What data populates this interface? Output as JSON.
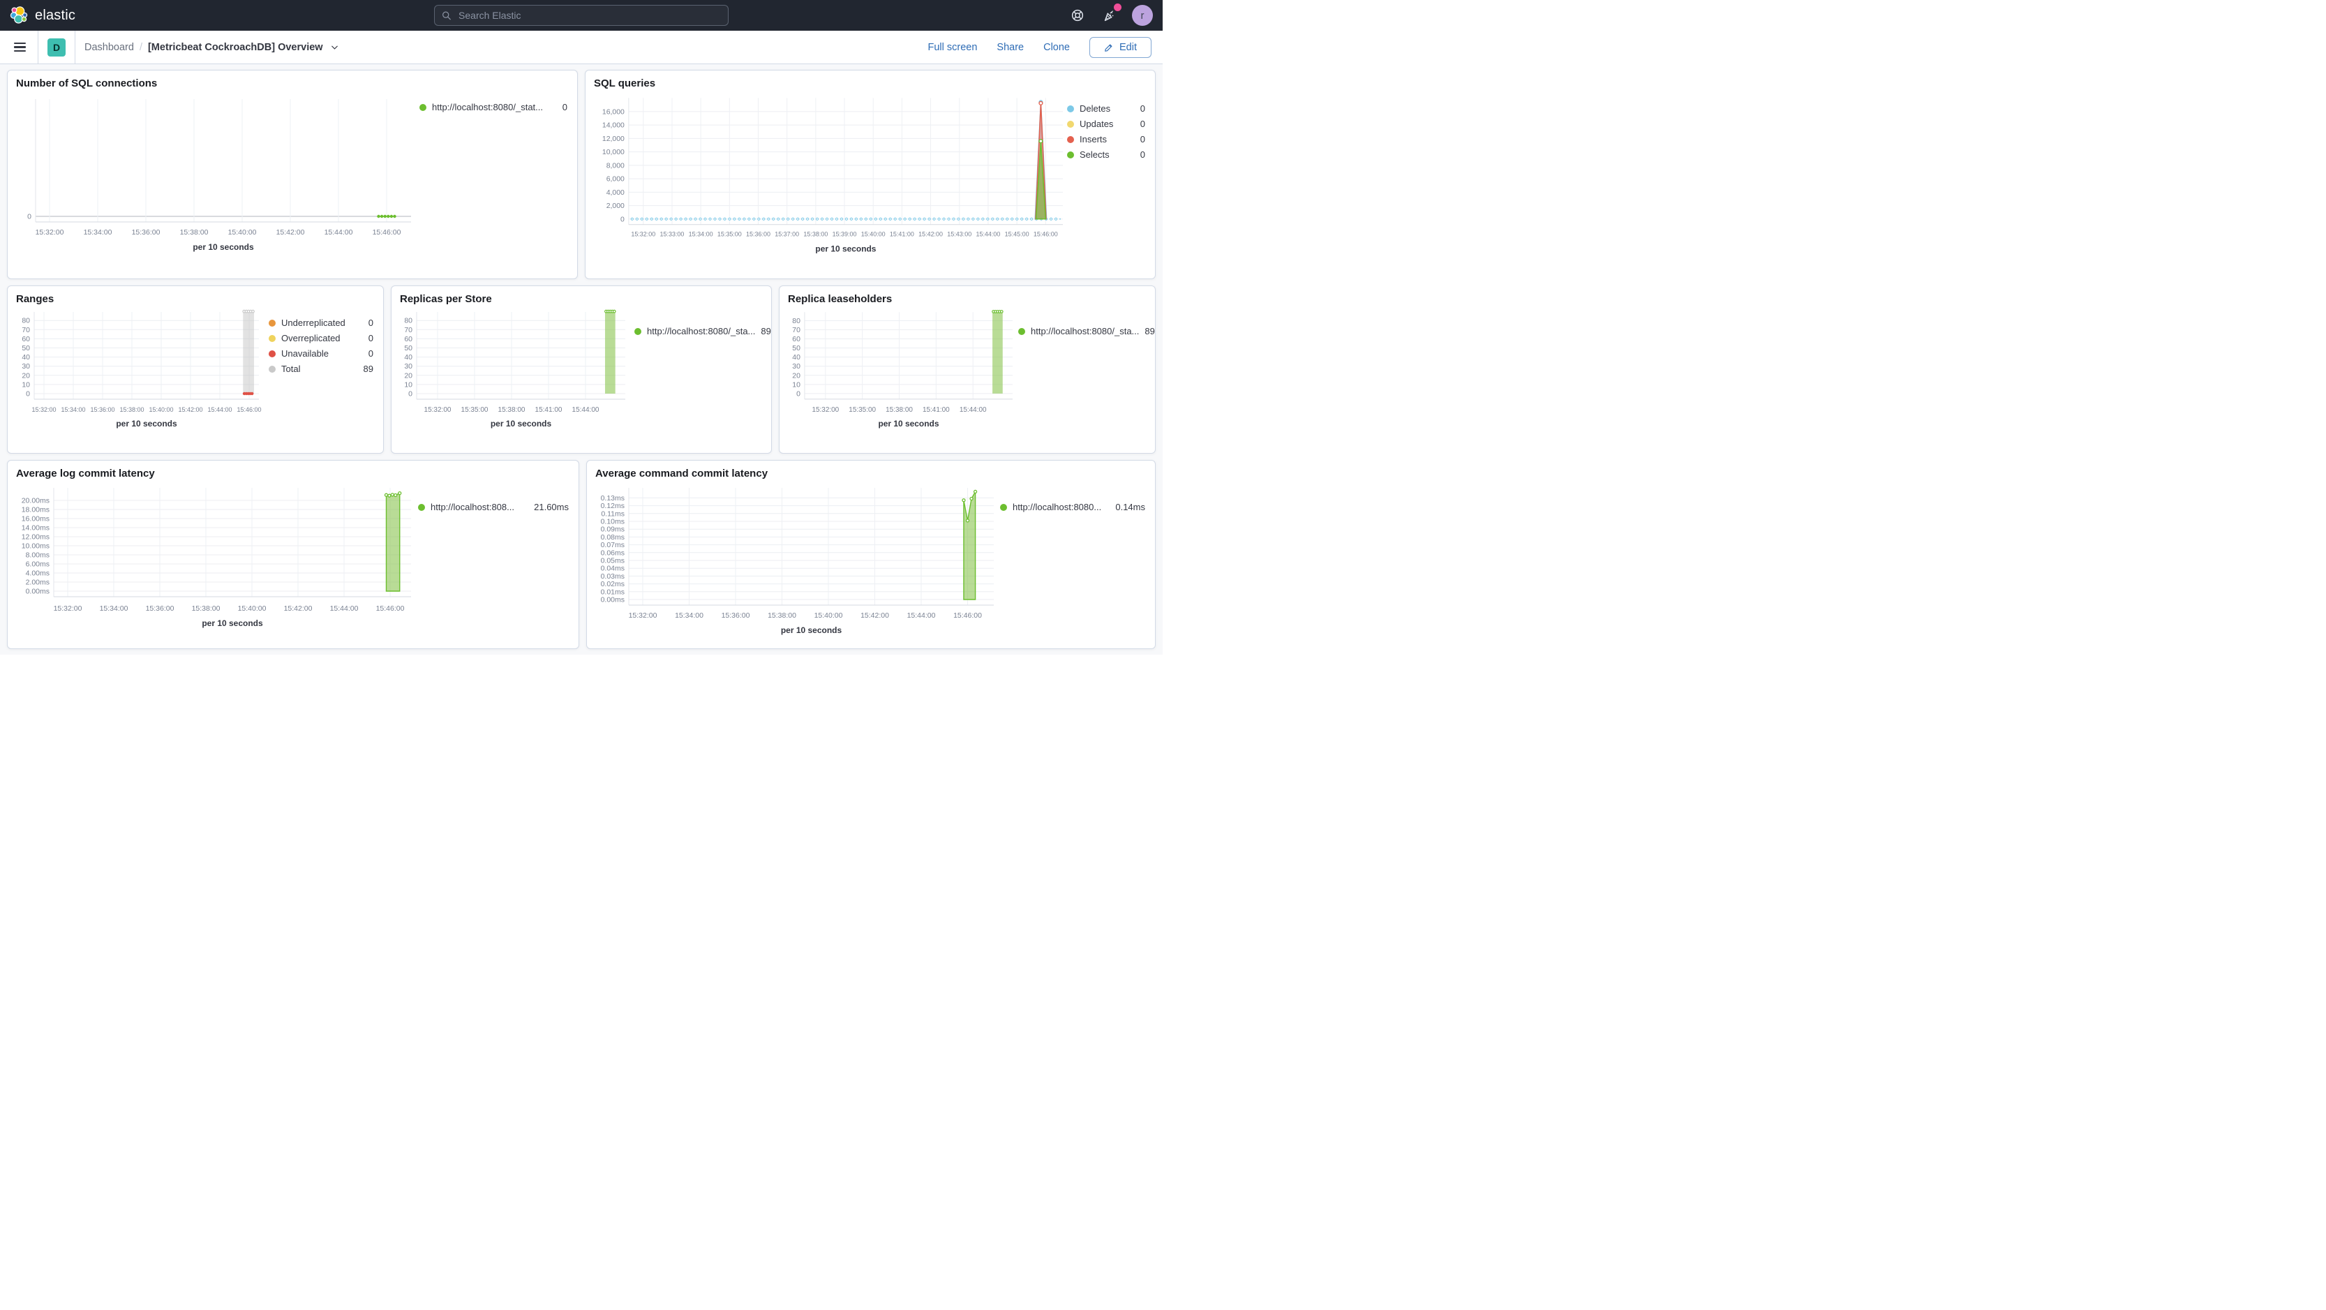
{
  "header": {
    "brand": "elastic",
    "search_placeholder": "Search Elastic",
    "avatar_initial": "r",
    "colors": {
      "bar_bg": "#212630",
      "notification_badge": "#F04E98",
      "avatar_bg": "#BCA3DE"
    }
  },
  "nav": {
    "app_badge": "D",
    "app_badge_color": "#3EBEB0",
    "breadcrumb": [
      "Dashboard",
      "[Metricbeat CockroachDB] Overview"
    ],
    "actions": [
      "Full screen",
      "Share",
      "Clone"
    ],
    "edit_label": "Edit",
    "link_color": "#2E6CB5"
  },
  "chart_data": [
    {
      "id": "sql-connections",
      "type": "line",
      "title": "Number of SQL connections",
      "x_label": "per 10 seconds",
      "x_ticks": [
        "15:32:00",
        "15:34:00",
        "15:36:00",
        "15:38:00",
        "15:40:00",
        "15:42:00",
        "15:44:00",
        "15:46:00"
      ],
      "y_tick_labels": [
        "0"
      ],
      "y_tick_values": [
        0
      ],
      "series": [
        {
          "name": "http://localhost:8080/_stat...",
          "legend_value": "0",
          "color": "#6CBE2F",
          "type": "points",
          "values": [
            [
              "15:45:40",
              0
            ],
            [
              "15:45:48",
              0
            ],
            [
              "15:45:56",
              0
            ],
            [
              "15:46:04",
              0
            ],
            [
              "15:46:12",
              0
            ],
            [
              "15:46:20",
              0
            ]
          ]
        }
      ]
    },
    {
      "id": "sql-queries",
      "type": "area",
      "title": "SQL queries",
      "x_label": "per 10 seconds",
      "x_ticks": [
        "15:32:00",
        "15:33:00",
        "15:34:00",
        "15:35:00",
        "15:36:00",
        "15:37:00",
        "15:38:00",
        "15:39:00",
        "15:40:00",
        "15:41:00",
        "15:42:00",
        "15:43:00",
        "15:44:00",
        "15:45:00",
        "15:46:00"
      ],
      "y_tick_labels": [
        "16,000",
        "14,000",
        "12,000",
        "10,000",
        "8,000",
        "6,000",
        "4,000",
        "2,000",
        "0"
      ],
      "y_tick_values": [
        16000,
        14000,
        12000,
        10000,
        8000,
        6000,
        4000,
        2000,
        0
      ],
      "series": [
        {
          "name": "Deletes",
          "legend_value": "0",
          "color": "#7DC9E7",
          "fill": "rgba(125,201,231,0.4)",
          "baseline": 0,
          "spike": {
            "time": "15:45:50",
            "peak": 17400,
            "base": [
              "15:45:38",
              "15:46:02"
            ]
          }
        },
        {
          "name": "Updates",
          "legend_value": "0",
          "color": "#F1D86F"
        },
        {
          "name": "Inserts",
          "legend_value": "0",
          "color": "#E4604E",
          "fill": "rgba(228,96,78,0.5)",
          "spike": {
            "time": "15:45:50",
            "peak": 17250,
            "base": [
              "15:45:39",
              "15:46:01"
            ]
          }
        },
        {
          "name": "Selects",
          "legend_value": "0",
          "color": "#6CBE2F",
          "fill": "rgba(108,190,47,0.55)",
          "spike": {
            "time": "15:45:50",
            "peak": 11600,
            "base": [
              "15:45:40",
              "15:46:00"
            ]
          }
        }
      ]
    },
    {
      "id": "ranges",
      "type": "bar",
      "title": "Ranges",
      "x_label": "per 10 seconds",
      "x_ticks": [
        "15:32:00",
        "15:34:00",
        "15:36:00",
        "15:38:00",
        "15:40:00",
        "15:42:00",
        "15:44:00",
        "15:46:00"
      ],
      "y_tick_labels": [
        "80",
        "70",
        "60",
        "50",
        "40",
        "30",
        "20",
        "10",
        "0"
      ],
      "y_tick_values": [
        80,
        70,
        60,
        50,
        40,
        30,
        20,
        10,
        0
      ],
      "series": [
        {
          "name": "Underreplicated",
          "legend_value": "0",
          "color": "#E8963C"
        },
        {
          "name": "Overreplicated",
          "legend_value": "0",
          "color": "#EFD35D"
        },
        {
          "name": "Unavailable",
          "legend_value": "0",
          "color": "#DF5146",
          "type": "points",
          "values": [
            [
              "15:45:40",
              0
            ],
            [
              "15:45:48",
              0
            ],
            [
              "15:45:56",
              0
            ],
            [
              "15:46:04",
              0
            ],
            [
              "15:46:12",
              0
            ]
          ]
        },
        {
          "name": "Total",
          "legend_value": "89",
          "color": "#C9C9C9",
          "type": "bar",
          "fill": "rgba(190,190,190,0.45)",
          "bar": {
            "from": "15:45:35",
            "to": "15:46:20",
            "height": 89,
            "top_markers": 5
          }
        }
      ]
    },
    {
      "id": "replicas-per-store",
      "type": "bar",
      "title": "Replicas per Store",
      "x_label": "per 10 seconds",
      "x_ticks": [
        "15:32:00",
        "15:35:00",
        "15:38:00",
        "15:41:00",
        "15:44:00"
      ],
      "y_tick_labels": [
        "80",
        "70",
        "60",
        "50",
        "40",
        "30",
        "20",
        "10",
        "0"
      ],
      "y_tick_values": [
        80,
        70,
        60,
        50,
        40,
        30,
        20,
        10,
        0
      ],
      "series": [
        {
          "name": "http://localhost:8080/_sta...",
          "legend_value": "89",
          "color": "#6CBE2F",
          "type": "bar",
          "fill": "rgba(138,196,80,0.6)",
          "bar": {
            "from": "15:45:35",
            "to": "15:46:25",
            "height": 89,
            "top_markers": 5
          }
        }
      ]
    },
    {
      "id": "replica-leaseholders",
      "type": "bar",
      "title": "Replica leaseholders",
      "x_label": "per 10 seconds",
      "x_ticks": [
        "15:32:00",
        "15:35:00",
        "15:38:00",
        "15:41:00",
        "15:44:00"
      ],
      "y_tick_labels": [
        "80",
        "70",
        "60",
        "50",
        "40",
        "30",
        "20",
        "10",
        "0"
      ],
      "y_tick_values": [
        80,
        70,
        60,
        50,
        40,
        30,
        20,
        10,
        0
      ],
      "series": [
        {
          "name": "http://localhost:8080/_sta...",
          "legend_value": "89",
          "color": "#6CBE2F",
          "type": "bar",
          "fill": "rgba(138,196,80,0.6)",
          "bar": {
            "from": "15:45:35",
            "to": "15:46:25",
            "height": 89,
            "top_markers": 5
          }
        }
      ]
    },
    {
      "id": "avg-log-commit-latency",
      "type": "area",
      "title": "Average log commit latency",
      "x_label": "per 10 seconds",
      "x_ticks": [
        "15:32:00",
        "15:34:00",
        "15:36:00",
        "15:38:00",
        "15:40:00",
        "15:42:00",
        "15:44:00",
        "15:46:00"
      ],
      "y_tick_labels": [
        "20.00ms",
        "18.00ms",
        "16.00ms",
        "14.00ms",
        "12.00ms",
        "10.00ms",
        "8.00ms",
        "6.00ms",
        "4.00ms",
        "2.00ms",
        "0.00ms"
      ],
      "y_tick_values": [
        20,
        18,
        16,
        14,
        12,
        10,
        8,
        6,
        4,
        2,
        0
      ],
      "series": [
        {
          "name": "http://localhost:808...",
          "legend_value": "21.60ms",
          "color": "#6CBE2F",
          "type": "area",
          "fill": "rgba(138,196,80,0.6)",
          "markers": true,
          "values": [
            [
              "15:45:50",
              21.2
            ],
            [
              "15:45:58",
              21.05
            ],
            [
              "15:46:06",
              21.25
            ],
            [
              "15:46:14",
              21.15
            ],
            [
              "15:46:25",
              21.6
            ]
          ]
        }
      ]
    },
    {
      "id": "avg-command-commit-latency",
      "type": "area",
      "title": "Average command commit latency",
      "x_label": "per 10 seconds",
      "x_ticks": [
        "15:32:00",
        "15:34:00",
        "15:36:00",
        "15:38:00",
        "15:40:00",
        "15:42:00",
        "15:44:00",
        "15:46:00"
      ],
      "y_tick_labels": [
        "0.13ms",
        "0.12ms",
        "0.11ms",
        "0.10ms",
        "0.09ms",
        "0.08ms",
        "0.07ms",
        "0.06ms",
        "0.05ms",
        "0.04ms",
        "0.03ms",
        "0.02ms",
        "0.01ms",
        "0.00ms"
      ],
      "y_tick_values": [
        0.13,
        0.12,
        0.11,
        0.1,
        0.09,
        0.08,
        0.07,
        0.06,
        0.05,
        0.04,
        0.03,
        0.02,
        0.01,
        0
      ],
      "series": [
        {
          "name": "http://localhost:8080...",
          "legend_value": "0.14ms",
          "color": "#6CBE2F",
          "type": "area",
          "fill": "rgba(138,196,80,0.6)",
          "markers": true,
          "values": [
            [
              "15:45:50",
              0.127
            ],
            [
              "15:46:00",
              0.101
            ],
            [
              "15:46:10",
              0.129
            ],
            [
              "15:46:20",
              0.138
            ]
          ]
        }
      ]
    }
  ]
}
